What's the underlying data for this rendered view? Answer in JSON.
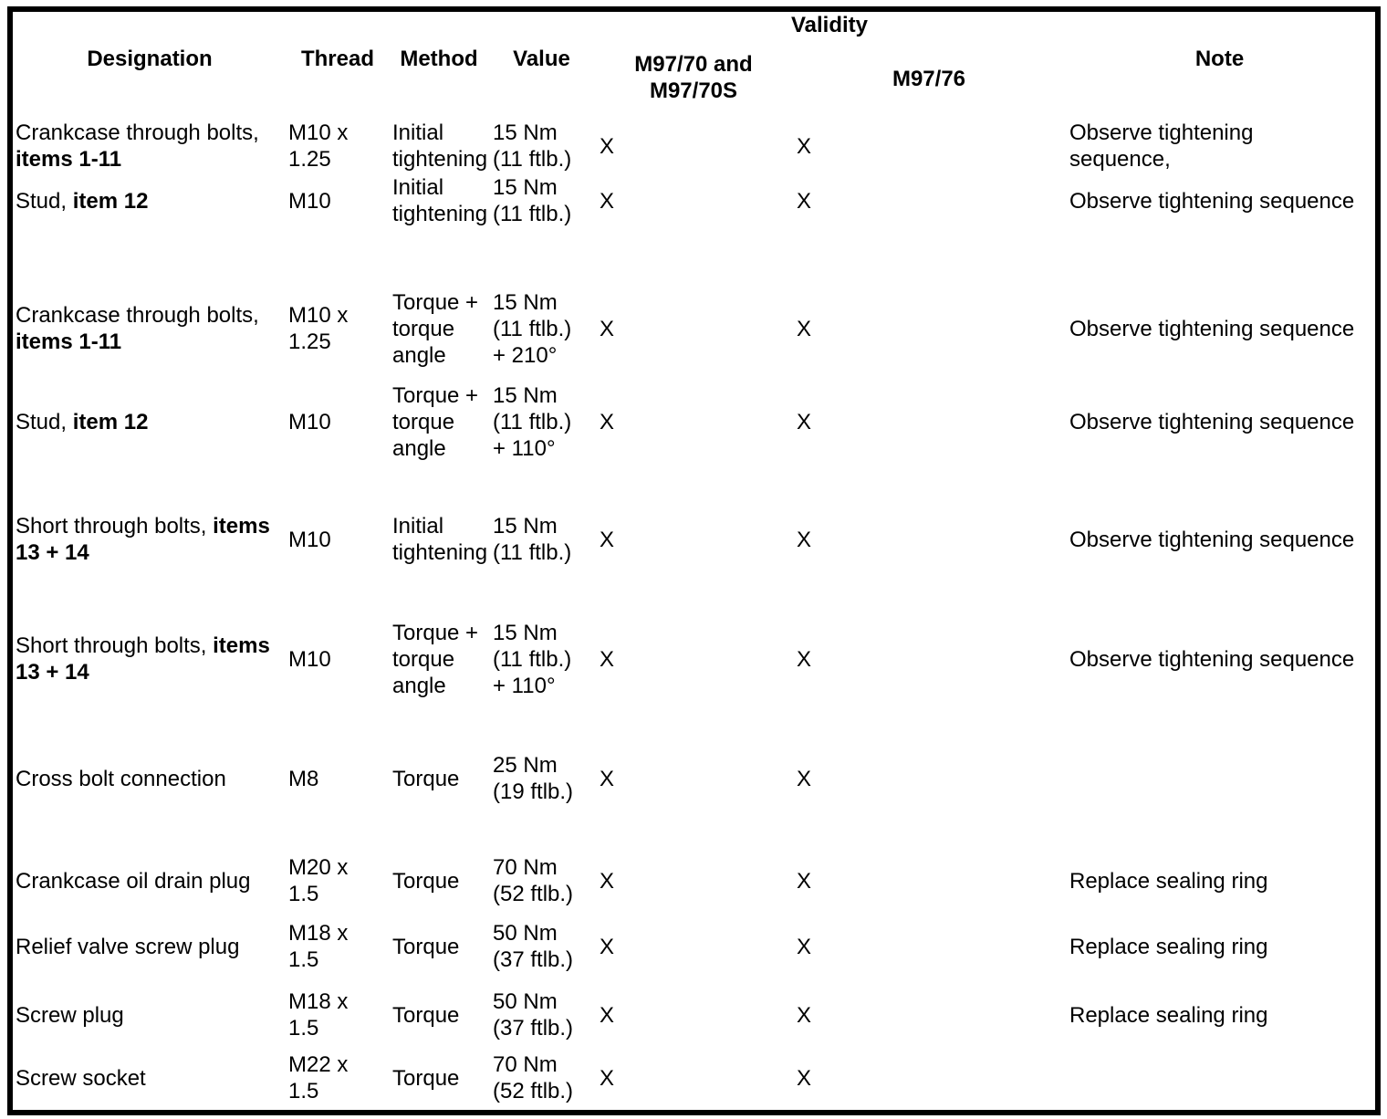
{
  "table": {
    "headers": {
      "designation": "Designation",
      "thread": "Thread",
      "method": "Method",
      "value": "Value",
      "validity": "Validity",
      "validity_col1": "M97/70 and\nM97/70S",
      "validity_col2": "M97/76",
      "note": "Note"
    },
    "colors": {
      "text": "#000000",
      "background": "#ffffff",
      "border": "#000000"
    },
    "rows": [
      {
        "designation": "Crankcase through bolts, ",
        "designation_bold": "items 1-11",
        "thread": "M10 x\n1.25",
        "method": "Initial\ntightening",
        "value": "15 Nm\n(11 ftlb.)",
        "validity_m9770": "X",
        "validity_m9776": "X",
        "note": "Observe tightening\nsequence,"
      },
      {
        "designation": "Stud, ",
        "designation_bold": "item 12",
        "thread": "M10",
        "method": "Initial\ntightening",
        "value": "15 Nm\n(11 ftlb.)",
        "validity_m9770": "X",
        "validity_m9776": "X",
        "note": "Observe tightening sequence"
      },
      {
        "designation": "Crankcase through bolts, ",
        "designation_bold": "items 1-11",
        "thread": "M10 x\n1.25",
        "method": "Torque +\ntorque\nangle",
        "value": "15 Nm\n(11 ftlb.)\n+ 210°",
        "validity_m9770": "X",
        "validity_m9776": "X",
        "note": "Observe tightening sequence"
      },
      {
        "designation": "Stud, ",
        "designation_bold": "item 12",
        "thread": "M10",
        "method": "Torque +\ntorque\nangle",
        "value": "15 Nm\n(11 ftlb.)\n+ 110°",
        "validity_m9770": "X",
        "validity_m9776": "X",
        "note": "Observe tightening sequence"
      },
      {
        "designation": "Short through bolts, ",
        "designation_bold": "items 13 + 14",
        "thread": "M10",
        "method": "Initial\ntightening",
        "value": "15 Nm\n(11 ftlb.)",
        "validity_m9770": "X",
        "validity_m9776": "X",
        "note": "Observe tightening sequence"
      },
      {
        "designation": "Short through bolts, ",
        "designation_bold": "items 13 + 14",
        "thread": "M10",
        "method": "Torque +\ntorque\nangle",
        "value": "15 Nm\n(11 ftlb.)\n+ 110°",
        "validity_m9770": "X",
        "validity_m9776": "X",
        "note": "Observe tightening sequence"
      },
      {
        "designation": "Cross bolt connection",
        "designation_bold": "",
        "thread": "M8",
        "method": "Torque",
        "value": "25 Nm\n(19 ftlb.)",
        "validity_m9770": "X",
        "validity_m9776": "X",
        "note": ""
      },
      {
        "designation": "Crankcase oil drain plug",
        "designation_bold": "",
        "thread": "M20 x\n1.5",
        "method": "Torque",
        "value": "70 Nm\n(52 ftlb.)",
        "validity_m9770": "X",
        "validity_m9776": "X",
        "note": "Replace sealing ring"
      },
      {
        "designation": "Relief valve screw plug",
        "designation_bold": "",
        "thread": "M18 x\n1.5",
        "method": "Torque",
        "value": "50 Nm\n(37 ftlb.)",
        "validity_m9770": "X",
        "validity_m9776": "X",
        "note": "Replace sealing ring"
      },
      {
        "designation": "Screw plug",
        "designation_bold": "",
        "thread": "M18 x\n1.5",
        "method": "Torque",
        "value": "50 Nm\n(37 ftlb.)",
        "validity_m9770": "X",
        "validity_m9776": "X",
        "note": "Replace sealing ring"
      },
      {
        "designation": "Screw socket",
        "designation_bold": "",
        "thread": "M22 x\n1.5",
        "method": "Torque",
        "value": "70 Nm\n(52 ftlb.)",
        "validity_m9770": "X",
        "validity_m9776": "X",
        "note": ""
      }
    ]
  }
}
